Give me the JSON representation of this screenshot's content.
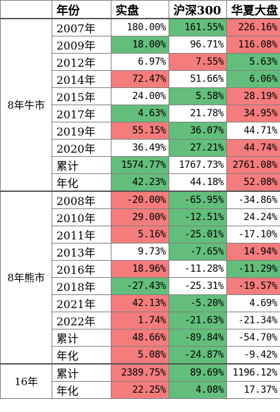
{
  "colors": {
    "red": "#f47c7c",
    "green": "#63be7b",
    "none": "#ffffff"
  },
  "header": [
    "年份",
    "实盘",
    "沪深300",
    "华夏大盘"
  ],
  "groups": [
    {
      "name": "8年牛市",
      "rows": [
        {
          "label": "2007年",
          "cells": [
            {
              "v": "180.00%",
              "c": "none"
            },
            {
              "v": "161.55%",
              "c": "green"
            },
            {
              "v": "226.16%",
              "c": "red"
            }
          ]
        },
        {
          "label": "2009年",
          "cells": [
            {
              "v": "18.00%",
              "c": "green"
            },
            {
              "v": "96.71%",
              "c": "none"
            },
            {
              "v": "116.08%",
              "c": "red"
            }
          ]
        },
        {
          "label": "2012年",
          "cells": [
            {
              "v": "6.97%",
              "c": "none"
            },
            {
              "v": "7.55%",
              "c": "red"
            },
            {
              "v": "5.63%",
              "c": "green"
            }
          ]
        },
        {
          "label": "2014年",
          "cells": [
            {
              "v": "72.47%",
              "c": "red"
            },
            {
              "v": "51.66%",
              "c": "none"
            },
            {
              "v": "6.06%",
              "c": "green"
            }
          ]
        },
        {
          "label": "2015年",
          "cells": [
            {
              "v": "24.00%",
              "c": "none"
            },
            {
              "v": "5.58%",
              "c": "green"
            },
            {
              "v": "28.19%",
              "c": "red"
            }
          ]
        },
        {
          "label": "2017年",
          "cells": [
            {
              "v": "4.63%",
              "c": "green"
            },
            {
              "v": "21.78%",
              "c": "none"
            },
            {
              "v": "34.95%",
              "c": "red"
            }
          ]
        },
        {
          "label": "2019年",
          "cells": [
            {
              "v": "55.15%",
              "c": "red"
            },
            {
              "v": "36.07%",
              "c": "green"
            },
            {
              "v": "44.71%",
              "c": "none"
            }
          ]
        },
        {
          "label": "2020年",
          "cells": [
            {
              "v": "36.49%",
              "c": "none"
            },
            {
              "v": "27.21%",
              "c": "green"
            },
            {
              "v": "44.74%",
              "c": "red"
            }
          ]
        },
        {
          "label": "累计",
          "cells": [
            {
              "v": "1574.77%",
              "c": "green"
            },
            {
              "v": "1767.73%",
              "c": "none"
            },
            {
              "v": "2761.08%",
              "c": "red"
            }
          ]
        },
        {
          "label": "年化",
          "cells": [
            {
              "v": "42.23%",
              "c": "green"
            },
            {
              "v": "44.18%",
              "c": "none"
            },
            {
              "v": "52.08%",
              "c": "red"
            }
          ]
        }
      ]
    },
    {
      "name": "8年熊市",
      "rows": [
        {
          "label": "2008年",
          "cells": [
            {
              "v": "-20.00%",
              "c": "red"
            },
            {
              "v": "-65.95%",
              "c": "green"
            },
            {
              "v": "-34.86%",
              "c": "none"
            }
          ]
        },
        {
          "label": "2010年",
          "cells": [
            {
              "v": "29.00%",
              "c": "red"
            },
            {
              "v": "-12.51%",
              "c": "green"
            },
            {
              "v": "24.24%",
              "c": "none"
            }
          ]
        },
        {
          "label": "2011年",
          "cells": [
            {
              "v": "5.16%",
              "c": "red"
            },
            {
              "v": "-25.01%",
              "c": "green"
            },
            {
              "v": "-17.10%",
              "c": "none"
            }
          ]
        },
        {
          "label": "2013年",
          "cells": [
            {
              "v": "9.73%",
              "c": "none"
            },
            {
              "v": "-7.65%",
              "c": "green"
            },
            {
              "v": "14.94%",
              "c": "red"
            }
          ]
        },
        {
          "label": "2016年",
          "cells": [
            {
              "v": "18.96%",
              "c": "red"
            },
            {
              "v": "-11.28%",
              "c": "none"
            },
            {
              "v": "-11.29%",
              "c": "green"
            }
          ]
        },
        {
          "label": "2018年",
          "cells": [
            {
              "v": "-27.43%",
              "c": "green"
            },
            {
              "v": "-25.31%",
              "c": "none"
            },
            {
              "v": "-19.57%",
              "c": "red"
            }
          ]
        },
        {
          "label": "2021年",
          "cells": [
            {
              "v": "42.13%",
              "c": "red"
            },
            {
              "v": "-5.20%",
              "c": "green"
            },
            {
              "v": "4.69%",
              "c": "none"
            }
          ]
        },
        {
          "label": "2022年",
          "cells": [
            {
              "v": "1.74%",
              "c": "red"
            },
            {
              "v": "-21.63%",
              "c": "green"
            },
            {
              "v": "-21.34%",
              "c": "none"
            }
          ]
        },
        {
          "label": "累计",
          "cells": [
            {
              "v": "48.66%",
              "c": "red"
            },
            {
              "v": "-89.84%",
              "c": "green"
            },
            {
              "v": "-54.70%",
              "c": "none"
            }
          ]
        },
        {
          "label": "年化",
          "cells": [
            {
              "v": "5.08%",
              "c": "red"
            },
            {
              "v": "-24.87%",
              "c": "green"
            },
            {
              "v": "-9.42%",
              "c": "none"
            }
          ]
        }
      ]
    },
    {
      "name": "16年",
      "rows": [
        {
          "label": "累计",
          "cells": [
            {
              "v": "2389.75%",
              "c": "red"
            },
            {
              "v": "89.69%",
              "c": "green"
            },
            {
              "v": "1196.12%",
              "c": "none"
            }
          ]
        },
        {
          "label": "年化",
          "cells": [
            {
              "v": "22.25%",
              "c": "red"
            },
            {
              "v": "4.08%",
              "c": "green"
            },
            {
              "v": "17.37%",
              "c": "none"
            }
          ]
        }
      ]
    }
  ]
}
